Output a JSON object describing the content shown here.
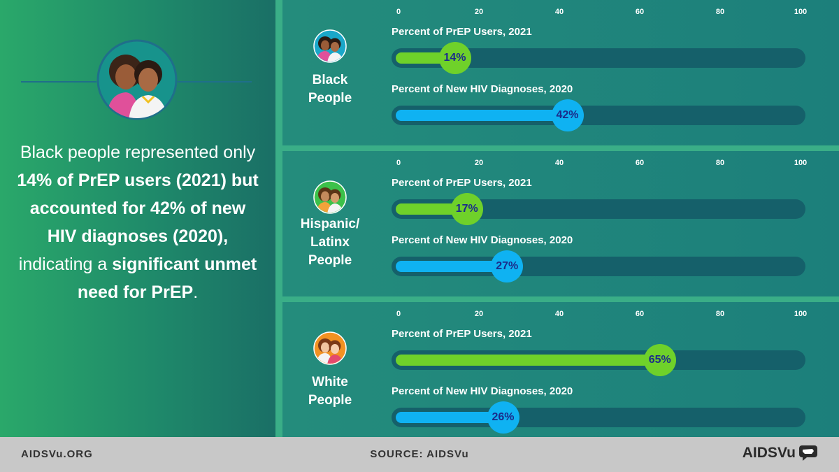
{
  "summary": {
    "parts": [
      {
        "text": "Black people represented only ",
        "bold": false
      },
      {
        "text": "14% of PrEP users (2021) but accounted for 42% of new HIV diagnoses (2020),",
        "bold": true
      },
      {
        "text": " indicating a ",
        "bold": false
      },
      {
        "text": "significant unmet need for PrEP",
        "bold": true
      },
      {
        "text": ".",
        "bold": false
      }
    ]
  },
  "chart_data": {
    "type": "bar",
    "xlim": [
      0,
      100
    ],
    "ticks": [
      "0",
      "20",
      "40",
      "60",
      "80",
      "100"
    ],
    "series_titles": [
      "Percent of PrEP Users, 2021",
      "Percent of New HIV Diagnoses, 2020"
    ],
    "colors": {
      "prep": "#6fd12a",
      "hiv": "#0fb2f2"
    },
    "groups": [
      {
        "label": [
          "Black",
          "People"
        ],
        "icon": "black-people-icon",
        "prep": 14,
        "hiv": 42
      },
      {
        "label": [
          "Hispanic/",
          "Latinx",
          "People"
        ],
        "icon": "hispanic-latinx-people-icon",
        "prep": 17,
        "hiv": 27
      },
      {
        "label": [
          "White",
          "People"
        ],
        "icon": "white-people-icon",
        "prep": 65,
        "hiv": 26
      }
    ]
  },
  "footer": {
    "left": "AIDSVu.ORG",
    "center": "SOURCE: AIDSVu",
    "logo": "AIDSVu"
  }
}
